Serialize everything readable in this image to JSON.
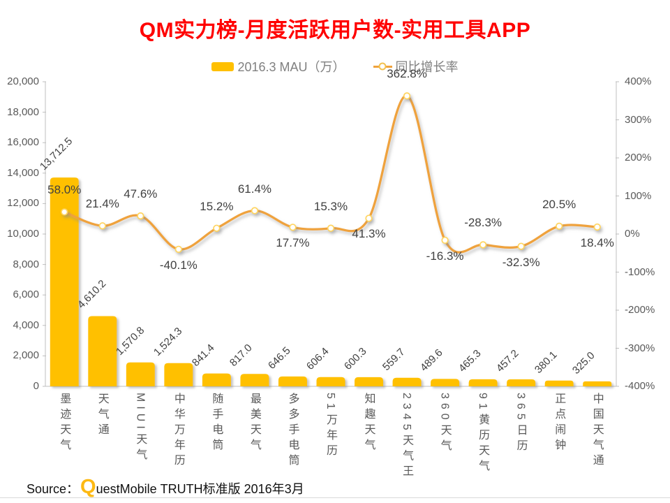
{
  "title": "QM实力榜-月度活跃用户数-实用工具APP",
  "legend": [
    {
      "label": "2016.3 MAU（万）",
      "series_type": "bar",
      "color": "#FFC000"
    },
    {
      "label": "同比增长率",
      "series_type": "line",
      "color": "#EFA23C"
    }
  ],
  "source": {
    "label": "Source：",
    "brand_q": "Q",
    "brand_rest": "uestMobile",
    "suffix": "TRUTH标准版 2016年3月"
  },
  "colors": {
    "bar": "#FFC000",
    "line": "#EFA23C",
    "marker_ring": "#FFD45E",
    "title": "#FF0000",
    "axis": "#BFBFBF",
    "tick_text": "#595959",
    "data_label": "#404040",
    "legend_text": "#808080",
    "brand_q": "#FDB913"
  },
  "chart_data": {
    "type": "bar",
    "subtype": "combo bar + smoothed line, dual axis",
    "title": "QM实力榜-月度活跃用户数-实用工具APP",
    "categories": [
      "墨迹天气",
      "天气通",
      "MIUI天气",
      "中华万年历",
      "随手电筒",
      "最美天气",
      "多多手电筒",
      "51万年历",
      "知趣天气",
      "2345天气王",
      "360天气",
      "91黄历天气",
      "365日历",
      "正点闹钟",
      "中国天气通"
    ],
    "series": [
      {
        "name": "2016.3 MAU（万）",
        "type": "bar",
        "axis": "left",
        "values": [
          13712.5,
          4610.2,
          1570.8,
          1524.3,
          841.4,
          817.0,
          646.5,
          606.4,
          600.3,
          559.7,
          489.6,
          465.3,
          457.2,
          380.1,
          325.0
        ],
        "labels": [
          "13,712.5",
          "4,610.2",
          "1,570.8",
          "1,524.3",
          "841.4",
          "817.0",
          "646.5",
          "606.4",
          "600.3",
          "559.7",
          "489.6",
          "465.3",
          "457.2",
          "380.1",
          "325.0"
        ]
      },
      {
        "name": "同比增长率",
        "type": "line",
        "axis": "right",
        "values": [
          58.0,
          21.4,
          47.6,
          -40.1,
          15.2,
          61.4,
          17.7,
          15.3,
          41.3,
          362.8,
          -16.3,
          -28.3,
          -32.3,
          20.5,
          18.4
        ],
        "labels": [
          "58.0%",
          "21.4%",
          "47.6%",
          "-40.1%",
          "15.2%",
          "61.4%",
          "17.7%",
          "15.3%",
          "41.3%",
          "362.8%",
          "-16.3%",
          "-28.3%",
          "-32.3%",
          "20.5%",
          "18.4%"
        ],
        "label_position": [
          "above",
          "above",
          "above",
          "below",
          "above",
          "above",
          "below",
          "above",
          "below",
          "above",
          "below",
          "above",
          "below",
          "above",
          "below"
        ]
      }
    ],
    "left_axis": {
      "min": 0,
      "max": 20000,
      "step": 2000,
      "tick_labels": [
        "20,000",
        "18,000",
        "16,000",
        "14,000",
        "12,000",
        "10,000",
        "8,000",
        "6,000",
        "4,000",
        "2,000",
        "0"
      ]
    },
    "right_axis": {
      "min": -400,
      "max": 400,
      "step": 100,
      "tick_labels": [
        "400%",
        "300%",
        "200%",
        "100%",
        "0%",
        "-100%",
        "-200%",
        "-300%",
        "-400%"
      ]
    },
    "grid": false,
    "legend_position": "top"
  }
}
